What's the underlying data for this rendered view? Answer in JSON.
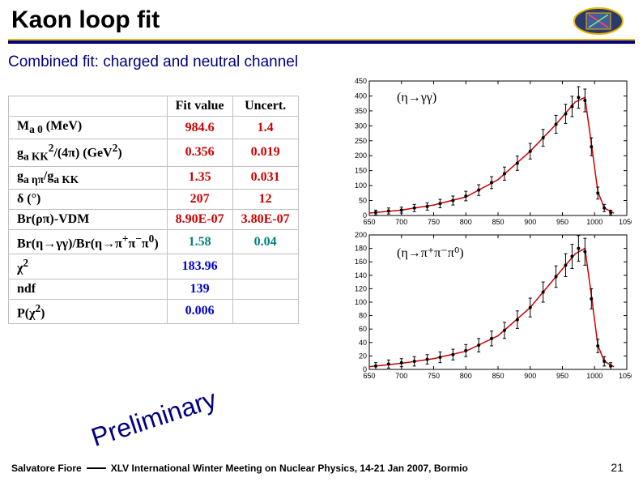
{
  "title": "Kaon loop fit",
  "subtitle": "Combined fit: charged and neutral channel",
  "table": {
    "headers": [
      "",
      "Fit value",
      "Uncert."
    ],
    "rows": [
      {
        "param_html": "M<sub>a 0</sub> (MeV)",
        "val": "984.6",
        "unc": "1.4",
        "cls": "red"
      },
      {
        "param_html": "g<sub>a KK</sub><sup>2</sup>/(4π) (GeV<sup>2</sup>)",
        "val": "0.356",
        "unc": "0.019",
        "cls": "red"
      },
      {
        "param_html": "g<sub>a ηπ</sub>/g<sub>a KK</sub>",
        "val": "1.35",
        "unc": "0.031",
        "cls": "red"
      },
      {
        "param_html": "δ (°)",
        "val": "207",
        "unc": "12",
        "cls": "red"
      },
      {
        "param_html": "Br(ρπ)-VDM",
        "val": "8.90E-07",
        "unc": "3.80E-07",
        "cls": "red"
      },
      {
        "param_html": "Br(η→γγ)/Br(η→π<sup>+</sup>π<sup>−</sup>π<sup>0</sup>)",
        "val": "1.58",
        "unc": "0.04",
        "cls": "teal"
      },
      {
        "param_html": "χ<sup>2</sup>",
        "val": "183.96",
        "unc": "",
        "cls": "blue"
      },
      {
        "param_html": "ndf",
        "val": "139",
        "unc": "",
        "cls": "blue"
      },
      {
        "param_html": "P(χ<sup>2</sup>)",
        "val": "0.006",
        "unc": "",
        "cls": "blue"
      }
    ]
  },
  "chart1": {
    "label": "(η→γγ)",
    "xlim": [
      650,
      1050
    ],
    "ylim": [
      0,
      450
    ],
    "yticks": [
      0,
      50,
      100,
      150,
      200,
      250,
      300,
      350,
      400,
      450
    ],
    "xticks": [
      650,
      700,
      750,
      800,
      850,
      900,
      950,
      1000,
      1050
    ],
    "line_color": "#cc0000",
    "marker_color": "#000000",
    "font_size": 9,
    "data": [
      {
        "x": 660,
        "y": 10,
        "e": 8
      },
      {
        "x": 680,
        "y": 15,
        "e": 10
      },
      {
        "x": 700,
        "y": 18,
        "e": 10
      },
      {
        "x": 720,
        "y": 25,
        "e": 12
      },
      {
        "x": 740,
        "y": 30,
        "e": 12
      },
      {
        "x": 760,
        "y": 40,
        "e": 14
      },
      {
        "x": 780,
        "y": 50,
        "e": 15
      },
      {
        "x": 800,
        "y": 65,
        "e": 16
      },
      {
        "x": 820,
        "y": 85,
        "e": 18
      },
      {
        "x": 840,
        "y": 110,
        "e": 20
      },
      {
        "x": 860,
        "y": 140,
        "e": 22
      },
      {
        "x": 880,
        "y": 175,
        "e": 24
      },
      {
        "x": 900,
        "y": 215,
        "e": 26
      },
      {
        "x": 920,
        "y": 260,
        "e": 28
      },
      {
        "x": 940,
        "y": 305,
        "e": 30
      },
      {
        "x": 955,
        "y": 340,
        "e": 32
      },
      {
        "x": 965,
        "y": 365,
        "e": 34
      },
      {
        "x": 975,
        "y": 395,
        "e": 36
      },
      {
        "x": 985,
        "y": 385,
        "e": 38
      },
      {
        "x": 995,
        "y": 230,
        "e": 30
      },
      {
        "x": 1005,
        "y": 75,
        "e": 20
      },
      {
        "x": 1015,
        "y": 25,
        "e": 12
      },
      {
        "x": 1025,
        "y": 10,
        "e": 8
      }
    ],
    "curve": [
      {
        "x": 650,
        "y": 8
      },
      {
        "x": 700,
        "y": 18
      },
      {
        "x": 750,
        "y": 35
      },
      {
        "x": 800,
        "y": 62
      },
      {
        "x": 850,
        "y": 120
      },
      {
        "x": 900,
        "y": 215
      },
      {
        "x": 940,
        "y": 305
      },
      {
        "x": 970,
        "y": 380
      },
      {
        "x": 985,
        "y": 395
      },
      {
        "x": 995,
        "y": 240
      },
      {
        "x": 1005,
        "y": 80
      },
      {
        "x": 1015,
        "y": 25
      },
      {
        "x": 1030,
        "y": 8
      }
    ]
  },
  "chart2": {
    "label": "(η→π⁺π⁻π⁰)",
    "xlim": [
      650,
      1050
    ],
    "ylim": [
      0,
      200
    ],
    "yticks": [
      0,
      20,
      40,
      60,
      80,
      100,
      120,
      140,
      160,
      180,
      200
    ],
    "xticks": [
      650,
      700,
      750,
      800,
      850,
      900,
      950,
      1000,
      1050
    ],
    "line_color": "#cc0000",
    "marker_color": "#000000",
    "font_size": 9,
    "data": [
      {
        "x": 660,
        "y": 5,
        "e": 5
      },
      {
        "x": 680,
        "y": 8,
        "e": 6
      },
      {
        "x": 700,
        "y": 10,
        "e": 6
      },
      {
        "x": 720,
        "y": 12,
        "e": 7
      },
      {
        "x": 740,
        "y": 15,
        "e": 7
      },
      {
        "x": 760,
        "y": 18,
        "e": 8
      },
      {
        "x": 780,
        "y": 22,
        "e": 8
      },
      {
        "x": 800,
        "y": 28,
        "e": 9
      },
      {
        "x": 820,
        "y": 36,
        "e": 10
      },
      {
        "x": 840,
        "y": 46,
        "e": 11
      },
      {
        "x": 860,
        "y": 58,
        "e": 12
      },
      {
        "x": 880,
        "y": 74,
        "e": 13
      },
      {
        "x": 900,
        "y": 92,
        "e": 14
      },
      {
        "x": 920,
        "y": 115,
        "e": 15
      },
      {
        "x": 940,
        "y": 138,
        "e": 16
      },
      {
        "x": 955,
        "y": 155,
        "e": 17
      },
      {
        "x": 965,
        "y": 168,
        "e": 18
      },
      {
        "x": 975,
        "y": 180,
        "e": 19
      },
      {
        "x": 985,
        "y": 175,
        "e": 20
      },
      {
        "x": 995,
        "y": 105,
        "e": 15
      },
      {
        "x": 1005,
        "y": 35,
        "e": 10
      },
      {
        "x": 1015,
        "y": 12,
        "e": 7
      },
      {
        "x": 1025,
        "y": 5,
        "e": 5
      }
    ],
    "curve": [
      {
        "x": 650,
        "y": 4
      },
      {
        "x": 700,
        "y": 9
      },
      {
        "x": 750,
        "y": 16
      },
      {
        "x": 800,
        "y": 27
      },
      {
        "x": 850,
        "y": 50
      },
      {
        "x": 900,
        "y": 92
      },
      {
        "x": 940,
        "y": 138
      },
      {
        "x": 970,
        "y": 172
      },
      {
        "x": 985,
        "y": 180
      },
      {
        "x": 995,
        "y": 110
      },
      {
        "x": 1005,
        "y": 36
      },
      {
        "x": 1015,
        "y": 12
      },
      {
        "x": 1030,
        "y": 4
      }
    ]
  },
  "preliminary": "Preliminary",
  "footer": {
    "author": "Salvatore Fiore",
    "conf": "XLV International Winter Meeting on Nuclear Physics, 14-21 Jan 2007, Bormio"
  },
  "page": "21",
  "colors": {
    "accent_yellow": "#e6b800",
    "navy": "#000080",
    "bg": "#ffffff"
  }
}
